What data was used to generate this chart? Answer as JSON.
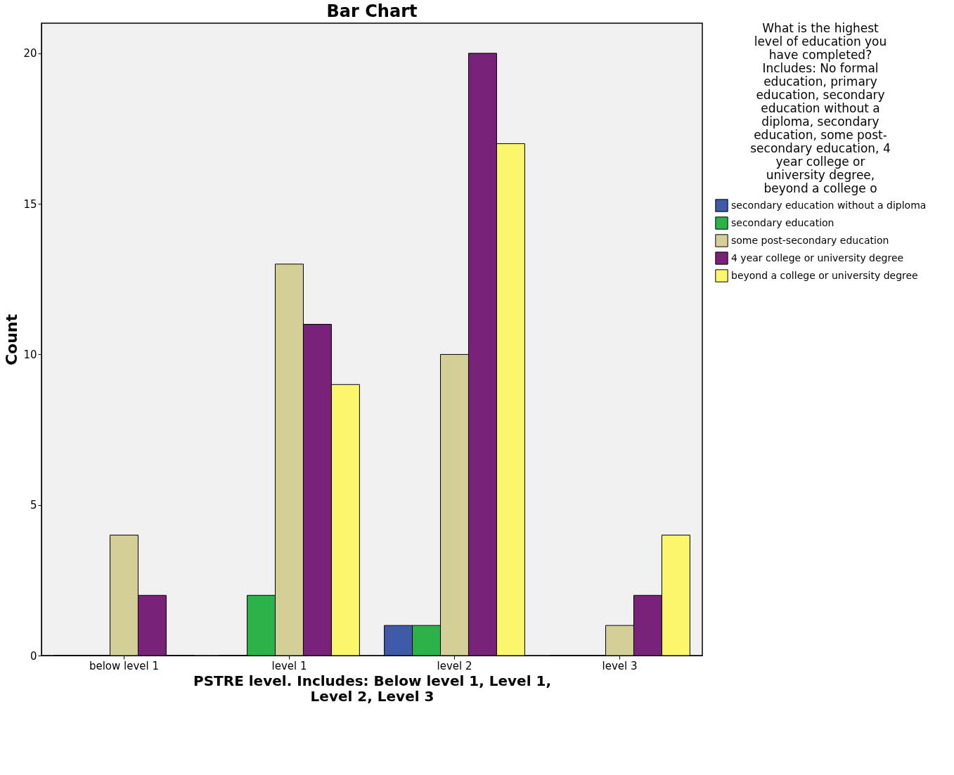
{
  "chart_data": {
    "type": "bar",
    "title": "Bar Chart",
    "xlabel": "PSTRE level. Includes: Below level 1, Level 1, Level 2, Level 3",
    "ylabel": "Count",
    "legend_title": "What is the highest level of education you have completed? Includes: No formal education, primary education, secondary education without a diploma, secondary education, some post-secondary education, 4 year college or university degree, beyond a college o",
    "categories": [
      "below level 1",
      "level 1",
      "level 2",
      "level 3"
    ],
    "series": [
      {
        "name": "secondary education without a diploma",
        "color": "#3e5aa9",
        "values": [
          0,
          0,
          1,
          0
        ]
      },
      {
        "name": "secondary education",
        "color": "#2bb34a",
        "values": [
          0,
          2,
          1,
          0
        ]
      },
      {
        "name": "some post-secondary education",
        "color": "#d4cf96",
        "values": [
          4,
          13,
          10,
          1
        ]
      },
      {
        "name": "4 year college or university degree",
        "color": "#78227a",
        "values": [
          2,
          11,
          20,
          2
        ]
      },
      {
        "name": "beyond a college or university degree",
        "color": "#fbf76c",
        "values": [
          0,
          9,
          17,
          4
        ]
      }
    ],
    "ylim": [
      0,
      21
    ],
    "yticks": [
      0,
      5,
      10,
      15,
      20
    ],
    "grid": false,
    "legend": "right"
  }
}
